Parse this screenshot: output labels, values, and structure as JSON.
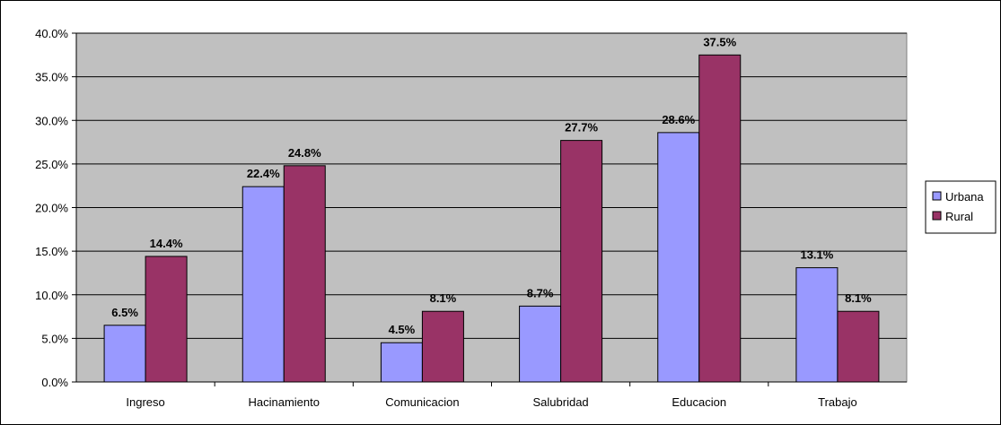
{
  "chart_data": {
    "type": "bar",
    "categories": [
      "Ingreso",
      "Hacinamiento",
      "Comunicacion",
      "Salubridad",
      "Educacion",
      "Trabajo"
    ],
    "series": [
      {
        "name": "Urbana",
        "values": [
          6.5,
          22.4,
          4.5,
          8.7,
          28.6,
          13.1
        ],
        "labels": [
          "6.5%",
          "22.4%",
          "4.5%",
          "8.7%",
          "28.6%",
          "13.1%"
        ],
        "color": "#9999ff"
      },
      {
        "name": "Rural",
        "values": [
          14.4,
          24.8,
          8.1,
          27.7,
          37.5,
          8.1
        ],
        "labels": [
          "14.4%",
          "24.8%",
          "8.1%",
          "27.7%",
          "37.5%",
          "8.1%"
        ],
        "color": "#993366"
      }
    ],
    "ylim": [
      0,
      40
    ],
    "yticks": [
      0,
      5,
      10,
      15,
      20,
      25,
      30,
      35,
      40
    ],
    "ytick_labels": [
      "0.0%",
      "5.0%",
      "10.0%",
      "15.0%",
      "20.0%",
      "25.0%",
      "30.0%",
      "35.0%",
      "40.0%"
    ],
    "plot_background": "#c0c0c0",
    "grid": true,
    "legend_position": "right"
  }
}
